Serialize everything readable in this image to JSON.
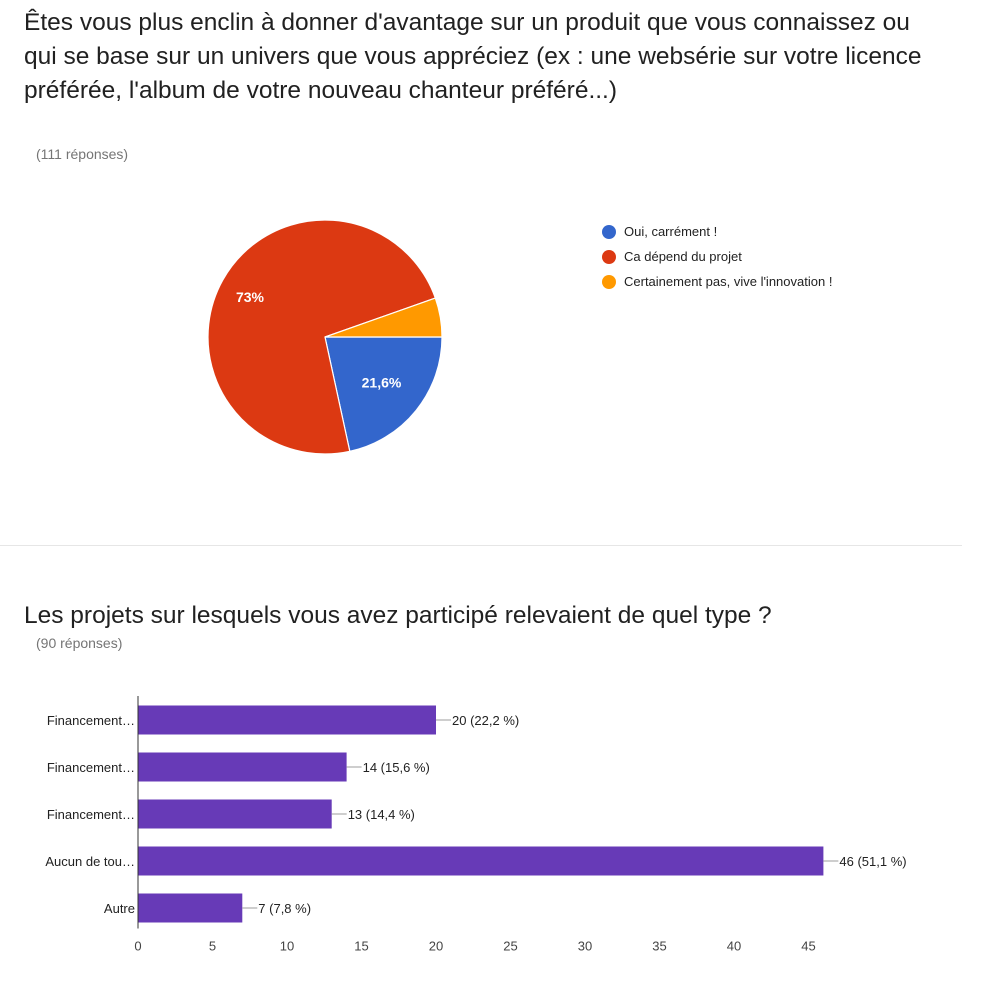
{
  "q1": {
    "title": "Êtes vous plus enclin à donner d'avantage sur un produit que vous connaissez ou qui se base sur un univers que vous appréciez (ex : une websérie sur votre licence préférée, l'album de votre nouveau chanteur préféré...)",
    "count": "(111 réponses)"
  },
  "q2": {
    "title": "Les projets sur lesquels vous avez participé relevaient de quel type ?",
    "count": "(90 réponses)"
  },
  "chart_data": [
    {
      "type": "pie",
      "labels": [
        "Oui, carrément !",
        "Ca dépend du projet",
        "Certainement pas, vive l'innovation !"
      ],
      "values": [
        21.6,
        73,
        5.4
      ],
      "slice_labels": [
        "21,6%",
        "73%",
        ""
      ],
      "colors": [
        "#3366cc",
        "#dc3912",
        "#ff9900"
      ],
      "legend": "right"
    },
    {
      "type": "bar",
      "orientation": "horizontal",
      "categories": [
        "Financement…",
        "Financement…",
        "Financement…",
        "Aucun de tou…",
        "Autre"
      ],
      "values": [
        20,
        14,
        13,
        46,
        7
      ],
      "value_labels": [
        "20 (22,2 %)",
        "14 (15,6 %)",
        "13 (14,4 %)",
        "46 (51,1 %)",
        "7 (7,8 %)"
      ],
      "xticks": [
        "0",
        "5",
        "10",
        "15",
        "20",
        "25",
        "30",
        "35",
        "40",
        "45"
      ],
      "xlim": [
        0,
        46
      ],
      "color": "#673ab7",
      "grid": false
    }
  ]
}
